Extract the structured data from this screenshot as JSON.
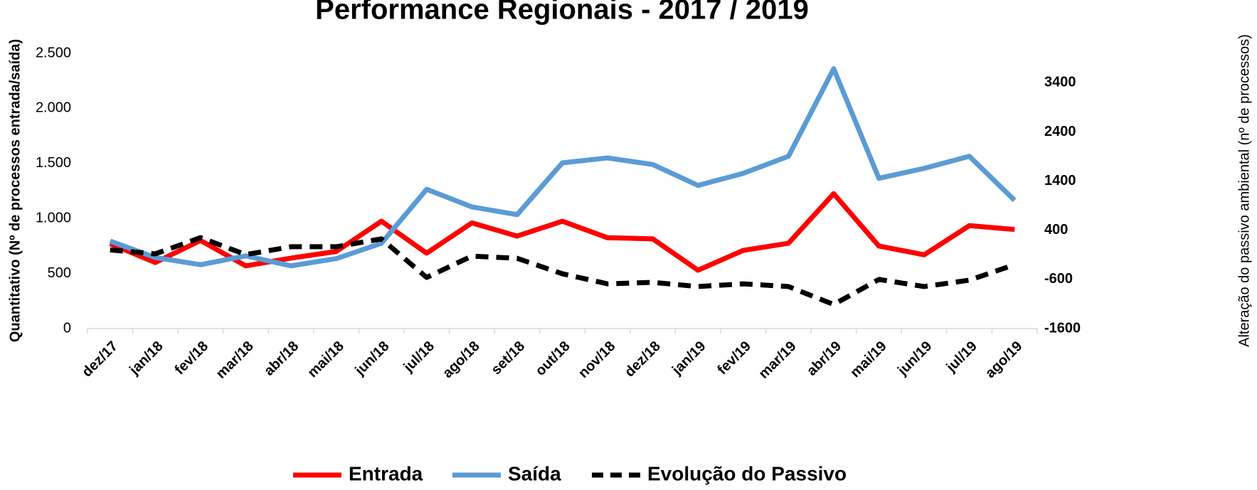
{
  "chart_data": {
    "type": "line",
    "title": "Performance Regionais - 2017 / 2019",
    "ylabel": "Quantitativo (Nº de processos entrada/saída)",
    "y2label": "Alteração do passivo ambiental (nº de processos)",
    "categories": [
      "dez/17",
      "jan/18",
      "fev/18",
      "mar/18",
      "abr/18",
      "mai/18",
      "jun/18",
      "jul/18",
      "ago/18",
      "set/18",
      "out/18",
      "nov/18",
      "dez/18",
      "jan/19",
      "fev/19",
      "mar/19",
      "abr/19",
      "mai/19",
      "jun/19",
      "jul/19",
      "ago/19"
    ],
    "series": [
      {
        "name": "Entrada",
        "color": "#ff0000",
        "dash": false,
        "values": [
          770,
          600,
          800,
          570,
          640,
          700,
          975,
          685,
          960,
          840,
          975,
          825,
          815,
          530,
          710,
          775,
          1225,
          750,
          670,
          935,
          900
        ]
      },
      {
        "name": "Saída",
        "color": "#5b9bd5",
        "dash": false,
        "values": [
          795,
          645,
          580,
          660,
          570,
          635,
          775,
          1265,
          1105,
          1035,
          1505,
          1550,
          1490,
          1300,
          1410,
          1565,
          2360,
          1365,
          1455,
          1565,
          1165
        ]
      },
      {
        "name": "Evolução do Passivo",
        "color": "#000000",
        "dash": true,
        "axis": "y2",
        "values": [
          0,
          -80,
          250,
          -95,
          65,
          65,
          225,
          -560,
          -125,
          -170,
          -485,
          -690,
          -660,
          -745,
          -690,
          -745,
          -1110,
          -600,
          -745,
          -615,
          -300
        ]
      }
    ],
    "ylim": [
      0,
      2500
    ],
    "yticks": [
      0,
      500,
      {
        "value": 1000,
        "label": "1.000"
      },
      {
        "value": 1500,
        "label": "1.500"
      },
      {
        "value": 2000,
        "label": "2.000"
      },
      {
        "value": 2500,
        "label": "2.500"
      }
    ],
    "y2lim": [
      -1600,
      4000
    ],
    "y2ticks": [
      -1600,
      -600,
      400,
      1400,
      2400,
      3400
    ],
    "grid": false,
    "legend": "bottom"
  }
}
